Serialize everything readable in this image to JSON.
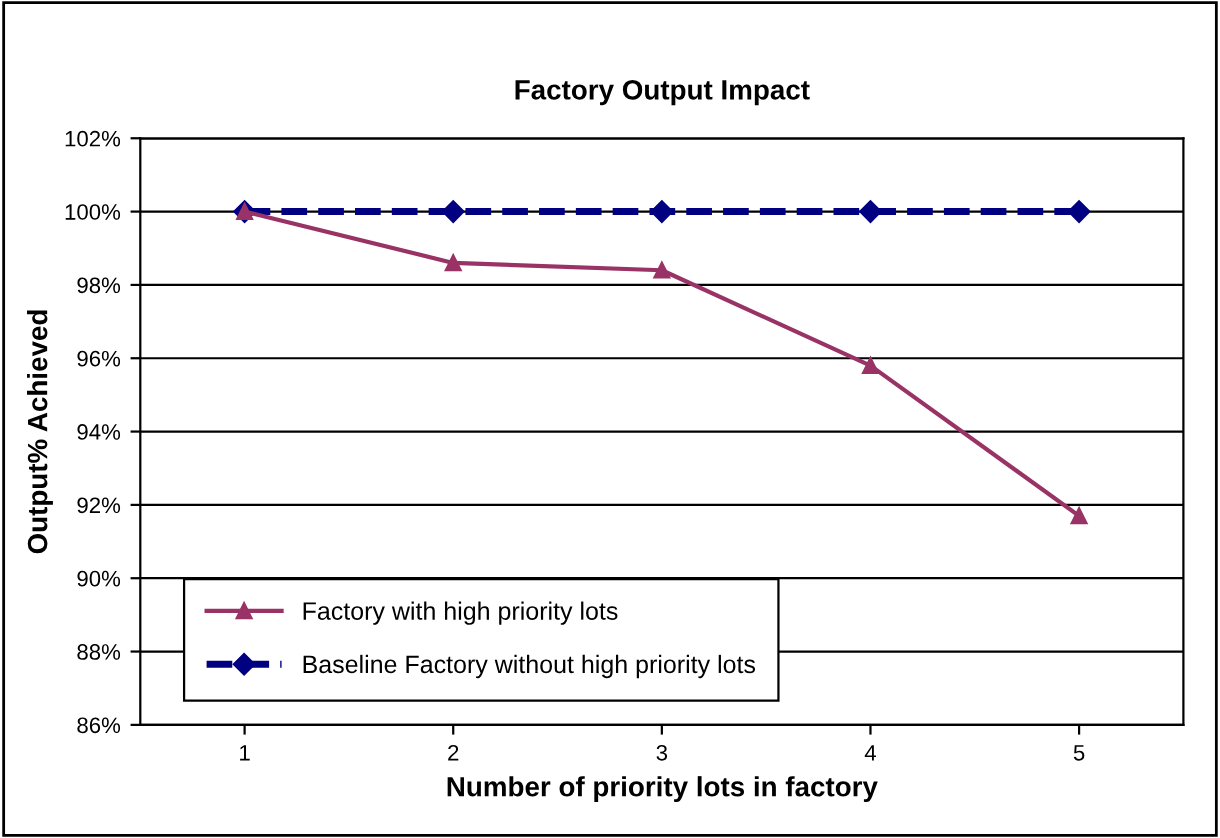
{
  "chart_data": {
    "type": "line",
    "title": "Factory Output Impact",
    "xlabel": "Number of priority lots in factory",
    "ylabel": "Output% Achieved",
    "categories": [
      "1",
      "2",
      "3",
      "4",
      "5"
    ],
    "series": [
      {
        "name": "Factory with high priority lots",
        "color": "#993366",
        "values": [
          100,
          98.6,
          98.4,
          95.8,
          91.7
        ],
        "marker": "triangle",
        "line_style": "solid"
      },
      {
        "name": "Baseline Factory without high priority lots",
        "color": "#000080",
        "values": [
          100,
          100,
          100,
          100,
          100
        ],
        "marker": "diamond",
        "line_style": "dashed"
      }
    ],
    "ylim": [
      86,
      102
    ],
    "yticks": [
      {
        "value": 86,
        "label": "86%"
      },
      {
        "value": 88,
        "label": "88%"
      },
      {
        "value": 90,
        "label": "90%"
      },
      {
        "value": 92,
        "label": "92%"
      },
      {
        "value": 94,
        "label": "94%"
      },
      {
        "value": 96,
        "label": "96%"
      },
      {
        "value": 98,
        "label": "98%"
      },
      {
        "value": 100,
        "label": "100%"
      },
      {
        "value": 102,
        "label": "102%"
      }
    ],
    "grid": "y",
    "legend": "bottom left"
  }
}
